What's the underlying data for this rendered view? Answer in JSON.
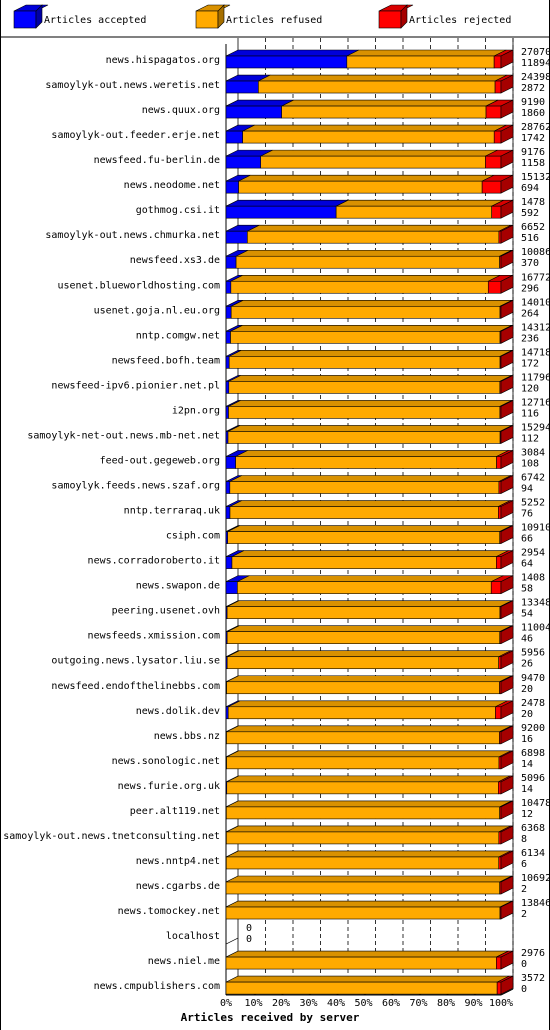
{
  "chart_data": {
    "type": "bar",
    "stacked": true,
    "orientation": "horizontal",
    "title": "",
    "xlabel": "Articles received by server",
    "ylabel": "",
    "xlim": [
      0,
      100
    ],
    "x_ticks": [
      "0%",
      "10%",
      "20%",
      "30%",
      "40%",
      "50%",
      "60%",
      "70%",
      "80%",
      "90%",
      "100%"
    ],
    "legend_position": "top",
    "series": [
      {
        "name": "Articles accepted",
        "color": "#0000ff"
      },
      {
        "name": "Articles refused",
        "color": "#ffaa00"
      },
      {
        "name": "Articles rejected",
        "color": "#ff0000"
      }
    ],
    "rows": [
      {
        "server": "news.hispagatos.org",
        "accepted": 11894,
        "refused": 14500,
        "rejected": 676,
        "total_label": "27070",
        "accepted_label": "11894"
      },
      {
        "server": "samoylyk-out.news.weretis.net",
        "accepted": 2872,
        "refused": 21000,
        "rejected": 526,
        "total_label": "24398",
        "accepted_label": "2872"
      },
      {
        "server": "news.quux.org",
        "accepted": 1860,
        "refused": 6830,
        "rejected": 500,
        "total_label": "9190",
        "accepted_label": "1860"
      },
      {
        "server": "samoylyk-out.feeder.erje.net",
        "accepted": 1742,
        "refused": 26310,
        "rejected": 710,
        "total_label": "28762",
        "accepted_label": "1742"
      },
      {
        "server": "newsfeed.fu-berlin.de",
        "accepted": 1158,
        "refused": 7500,
        "rejected": 518,
        "total_label": "9176",
        "accepted_label": "1158"
      },
      {
        "server": "news.neodome.net",
        "accepted": 694,
        "refused": 13400,
        "rejected": 1038,
        "total_label": "15132",
        "accepted_label": "694"
      },
      {
        "server": "gothmog.csi.it",
        "accepted": 592,
        "refused": 836,
        "rejected": 50,
        "total_label": "1478",
        "accepted_label": "592"
      },
      {
        "server": "samoylyk-out.news.chmurka.net",
        "accepted": 516,
        "refused": 6086,
        "rejected": 50,
        "total_label": "6652",
        "accepted_label": "516"
      },
      {
        "server": "newsfeed.xs3.de",
        "accepted": 370,
        "refused": 9666,
        "rejected": 50,
        "total_label": "10086",
        "accepted_label": "370"
      },
      {
        "server": "usenet.blueworldhosting.com",
        "accepted": 296,
        "refused": 15700,
        "rejected": 776,
        "total_label": "16772",
        "accepted_label": "296"
      },
      {
        "server": "usenet.goja.nl.eu.org",
        "accepted": 264,
        "refused": 13696,
        "rejected": 50,
        "total_label": "14010",
        "accepted_label": "264"
      },
      {
        "server": "nntp.comgw.net",
        "accepted": 236,
        "refused": 14026,
        "rejected": 50,
        "total_label": "14312",
        "accepted_label": "236"
      },
      {
        "server": "newsfeed.bofh.team",
        "accepted": 172,
        "refused": 14496,
        "rejected": 50,
        "total_label": "14718",
        "accepted_label": "172"
      },
      {
        "server": "newsfeed-ipv6.pionier.net.pl",
        "accepted": 120,
        "refused": 11626,
        "rejected": 50,
        "total_label": "11796",
        "accepted_label": "120"
      },
      {
        "server": "i2pn.org",
        "accepted": 116,
        "refused": 12550,
        "rejected": 50,
        "total_label": "12716",
        "accepted_label": "116"
      },
      {
        "server": "samoylyk-net-out.news.mb-net.net",
        "accepted": 112,
        "refused": 15132,
        "rejected": 50,
        "total_label": "15294",
        "accepted_label": "112"
      },
      {
        "server": "feed-out.gegeweb.org",
        "accepted": 108,
        "refused": 2926,
        "rejected": 50,
        "total_label": "3084",
        "accepted_label": "108"
      },
      {
        "server": "samoylyk.feeds.news.szaf.org",
        "accepted": 94,
        "refused": 6598,
        "rejected": 50,
        "total_label": "6742",
        "accepted_label": "94"
      },
      {
        "server": "nntp.terraraq.uk",
        "accepted": 76,
        "refused": 5126,
        "rejected": 50,
        "total_label": "5252",
        "accepted_label": "76"
      },
      {
        "server": "csiph.com",
        "accepted": 66,
        "refused": 10794,
        "rejected": 50,
        "total_label": "10910",
        "accepted_label": "66"
      },
      {
        "server": "news.corradoroberto.it",
        "accepted": 64,
        "refused": 2840,
        "rejected": 50,
        "total_label": "2954",
        "accepted_label": "64"
      },
      {
        "server": "news.swapon.de",
        "accepted": 58,
        "refused": 1300,
        "rejected": 50,
        "total_label": "1408",
        "accepted_label": "58"
      },
      {
        "server": "peering.usenet.ovh",
        "accepted": 54,
        "refused": 13244,
        "rejected": 50,
        "total_label": "13348",
        "accepted_label": "54"
      },
      {
        "server": "newsfeeds.xmission.com",
        "accepted": 46,
        "refused": 10908,
        "rejected": 50,
        "total_label": "11004",
        "accepted_label": "46"
      },
      {
        "server": "outgoing.news.lysator.liu.se",
        "accepted": 26,
        "refused": 5880,
        "rejected": 50,
        "total_label": "5956",
        "accepted_label": "26"
      },
      {
        "server": "newsfeed.endofthelinebbs.com",
        "accepted": 20,
        "refused": 9400,
        "rejected": 50,
        "total_label": "9470",
        "accepted_label": "20"
      },
      {
        "server": "news.dolik.dev",
        "accepted": 20,
        "refused": 2408,
        "rejected": 50,
        "total_label": "2478",
        "accepted_label": "20"
      },
      {
        "server": "news.bbs.nz",
        "accepted": 16,
        "refused": 9134,
        "rejected": 50,
        "total_label": "9200",
        "accepted_label": "16"
      },
      {
        "server": "news.sonologic.net",
        "accepted": 14,
        "refused": 6834,
        "rejected": 50,
        "total_label": "6898",
        "accepted_label": "14"
      },
      {
        "server": "news.furie.org.uk",
        "accepted": 14,
        "refused": 5032,
        "rejected": 50,
        "total_label": "5096",
        "accepted_label": "14"
      },
      {
        "server": "peer.alt119.net",
        "accepted": 12,
        "refused": 10416,
        "rejected": 50,
        "total_label": "10478",
        "accepted_label": "12"
      },
      {
        "server": "samoylyk-out.news.tnetconsulting.net",
        "accepted": 8,
        "refused": 6310,
        "rejected": 50,
        "total_label": "6368",
        "accepted_label": "8"
      },
      {
        "server": "news.nntp4.net",
        "accepted": 6,
        "refused": 6078,
        "rejected": 50,
        "total_label": "6134",
        "accepted_label": "6"
      },
      {
        "server": "news.cgarbs.de",
        "accepted": 2,
        "refused": 10640,
        "rejected": 50,
        "total_label": "10692",
        "accepted_label": "2"
      },
      {
        "server": "news.tomockey.net",
        "accepted": 2,
        "refused": 13794,
        "rejected": 50,
        "total_label": "13846",
        "accepted_label": "2"
      },
      {
        "server": "localhost",
        "accepted": 0,
        "refused": 0,
        "rejected": 0,
        "total_label": "0",
        "accepted_label": "0"
      },
      {
        "server": "news.niel.me",
        "accepted": 0,
        "refused": 2926,
        "rejected": 50,
        "total_label": "2976",
        "accepted_label": "0"
      },
      {
        "server": "news.cmpublishers.com",
        "accepted": 0,
        "refused": 3522,
        "rejected": 50,
        "total_label": "3572",
        "accepted_label": "0"
      }
    ]
  }
}
